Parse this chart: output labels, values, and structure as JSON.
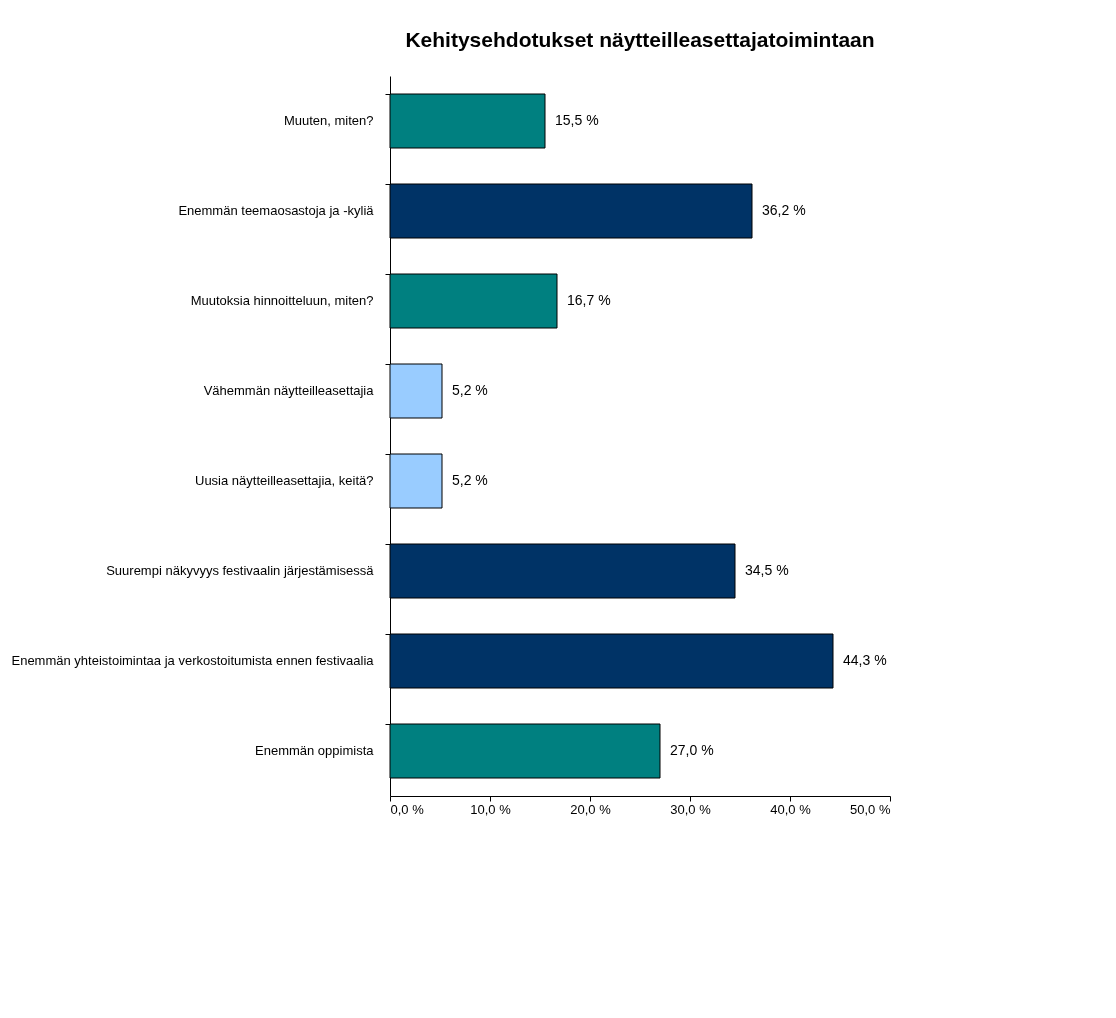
{
  "chart_data": {
    "type": "bar",
    "orientation": "horizontal",
    "title": "Kehitysehdotukset näytteilleasettajatoimintaan",
    "categories": [
      "Muuten, miten?",
      "Enemmän teemaosastoja ja -kyliä",
      "Muutoksia hinnoitteluun, miten?",
      "Vähemmän näytteilleasettajia",
      "Uusia näytteilleasettajia, keitä?",
      "Suurempi näkyvyys festivaalin järjestämisessä",
      "Enemmän yhteistoimintaa ja verkostoitumista ennen festivaalia",
      "Enemmän oppimista"
    ],
    "values": [
      15.5,
      36.2,
      16.7,
      5.2,
      5.2,
      34.5,
      44.3,
      27.0
    ],
    "colors": [
      "#008080",
      "#003366",
      "#008080",
      "#99ccff",
      "#99ccff",
      "#003366",
      "#003366",
      "#008080"
    ],
    "value_labels": [
      "15,5 %",
      "36,2 %",
      "16,7 %",
      "5,2 %",
      "5,2 %",
      "34,5 %",
      "44,3 %",
      "27,0 %"
    ],
    "xlim": [
      0,
      50
    ],
    "xticks": [
      {
        "value": 0,
        "label": "0,0 %"
      },
      {
        "value": 10,
        "label": "10,0 %"
      },
      {
        "value": 20,
        "label": "20,0 %"
      },
      {
        "value": 30,
        "label": "30,0 %"
      },
      {
        "value": 40,
        "label": "40,0 %"
      },
      {
        "value": 50,
        "label": "50,0 %"
      }
    ],
    "grid": false
  }
}
